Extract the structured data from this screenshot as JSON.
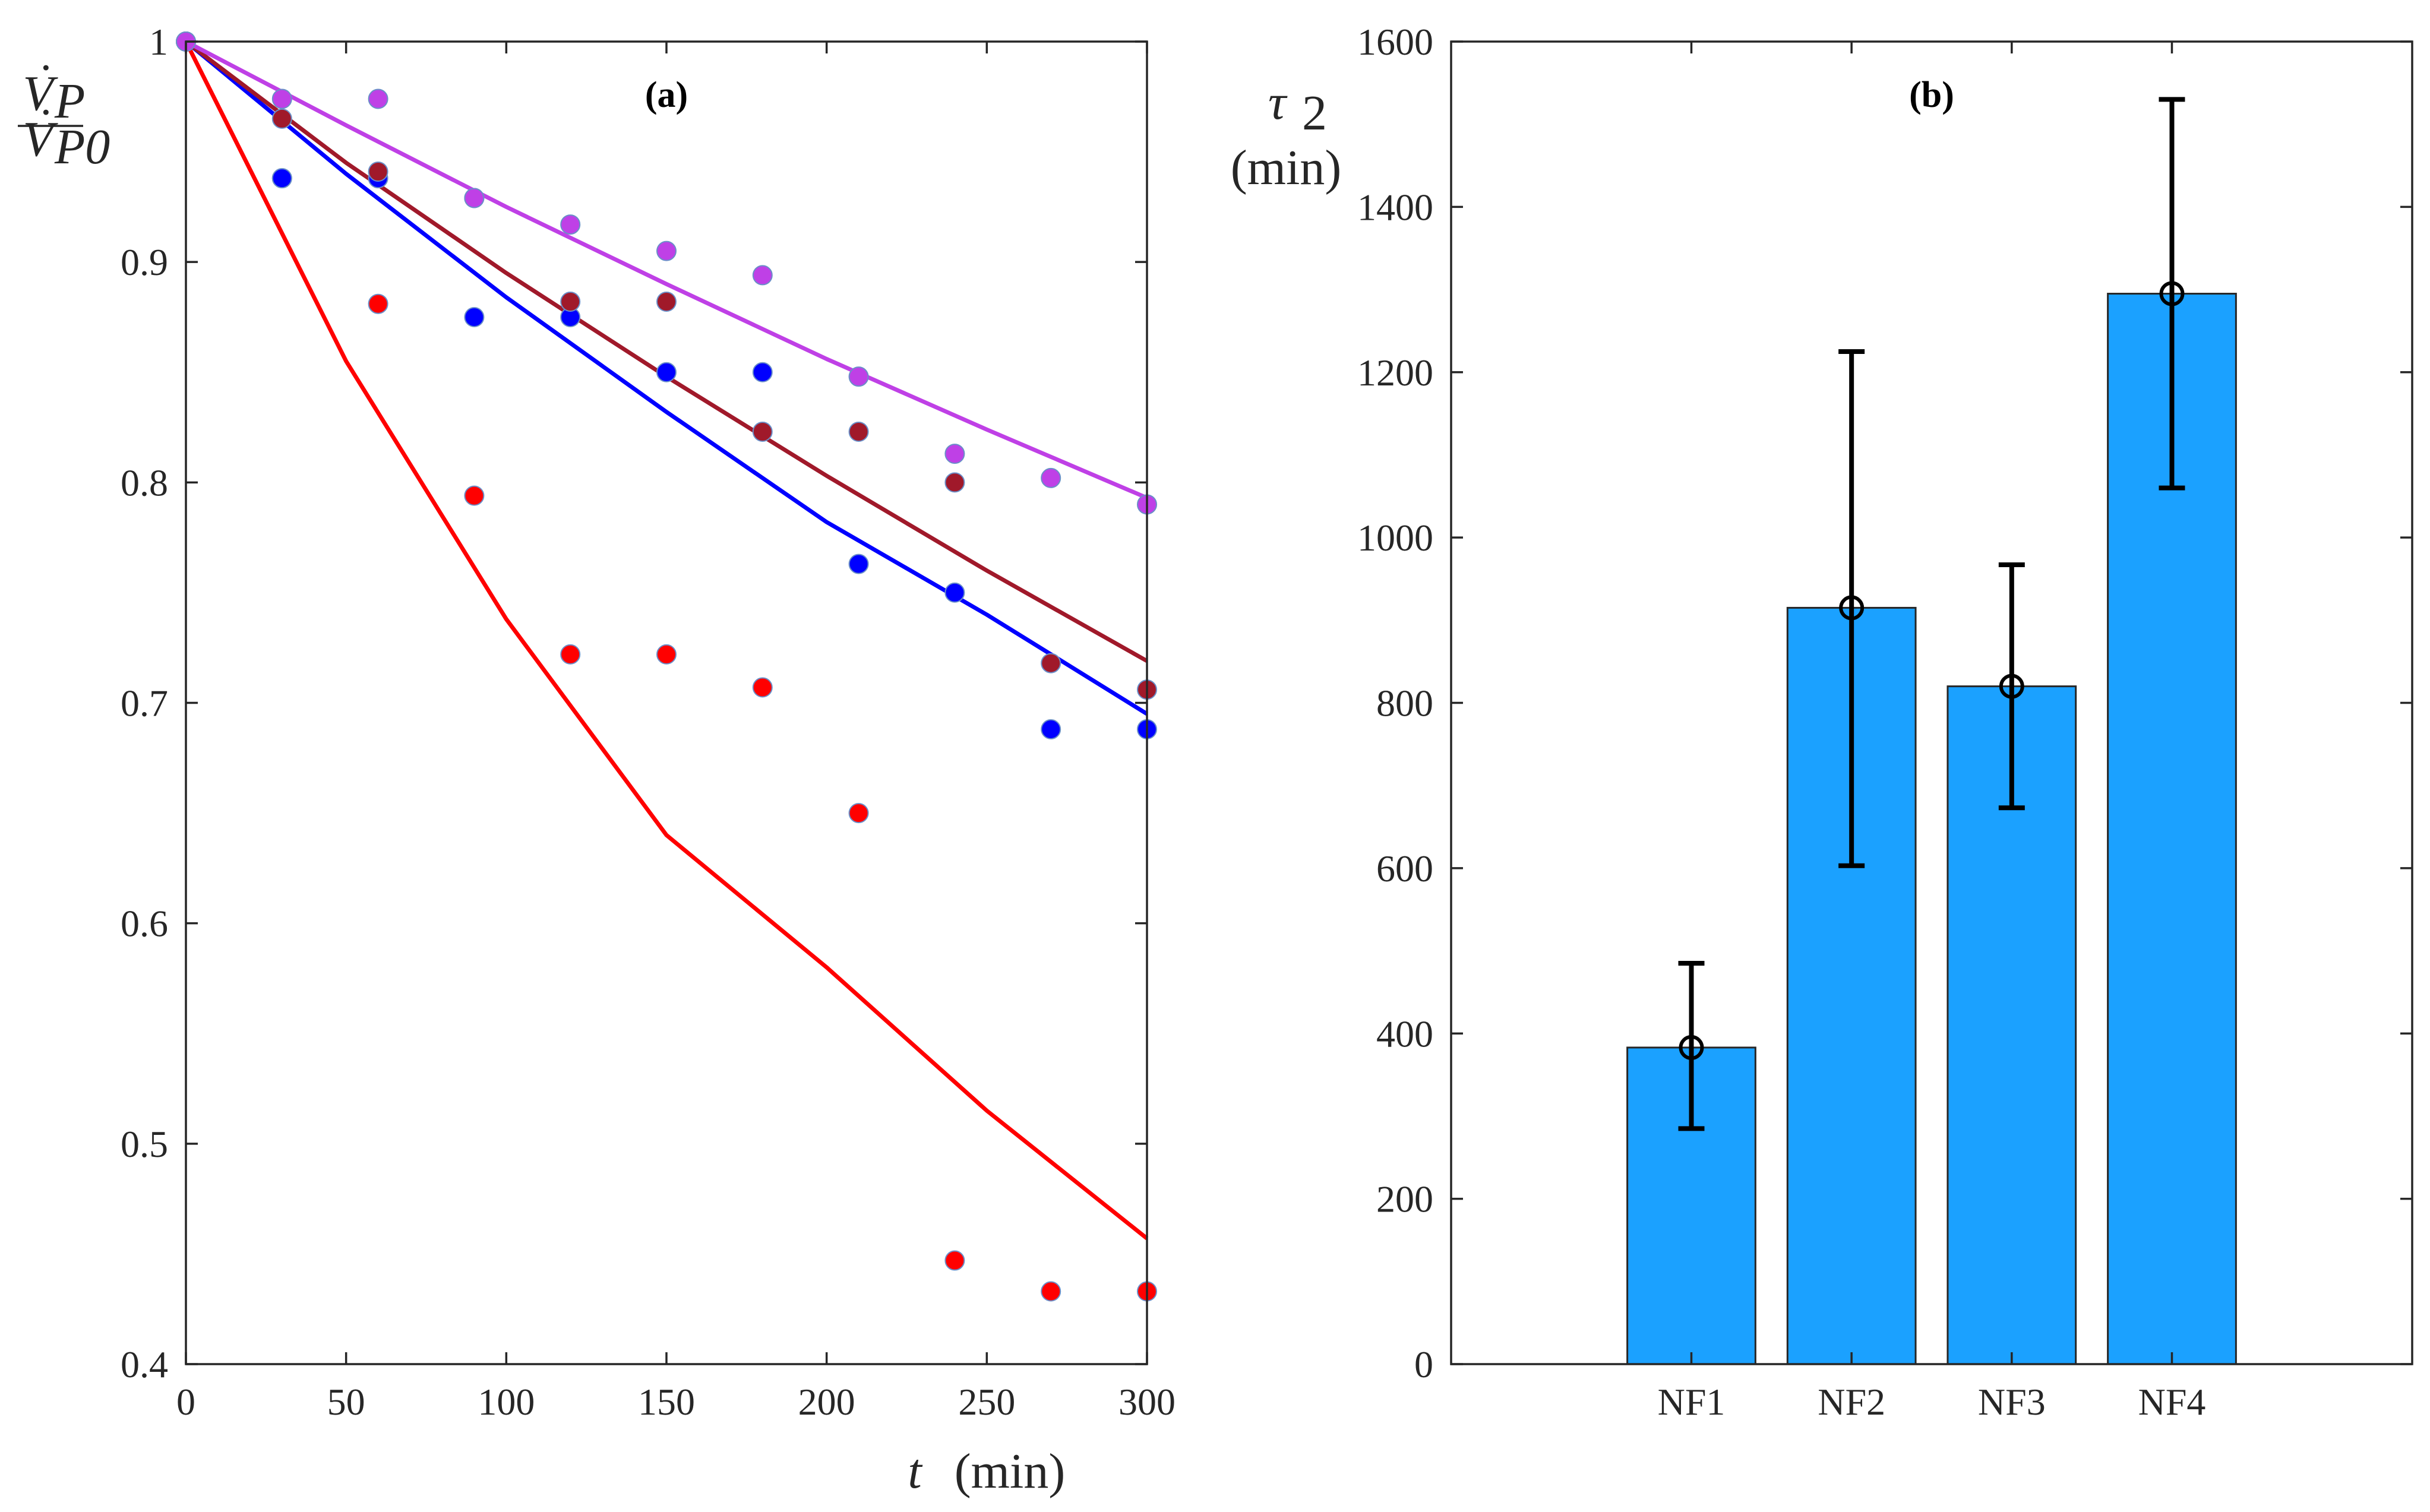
{
  "chart_data": [
    {
      "type": "scatter",
      "panel_label": "(a)",
      "xlabel_symbol": "t",
      "xlabel_unit": "(min)",
      "ylabel_numerator": "V",
      "ylabel_numerator_sub": "P",
      "ylabel_denominator": "V",
      "ylabel_denominator_sub": "P0",
      "xlim": [
        0,
        300
      ],
      "ylim": [
        0.4,
        1.0
      ],
      "x_ticks": [
        0,
        50,
        100,
        150,
        200,
        250,
        300
      ],
      "x_tick_labels": [
        "0",
        "50",
        "100",
        "150",
        "200",
        "250",
        "300"
      ],
      "y_ticks": [
        0.4,
        0.5,
        0.6,
        0.7,
        0.8,
        0.9,
        1.0
      ],
      "y_tick_labels": [
        "0.4",
        "0.5",
        "0.6",
        "0.7",
        "0.8",
        "0.9",
        "1"
      ],
      "grid": false,
      "series": [
        {
          "color": "#ff0000",
          "x": [
            0,
            30,
            60,
            90,
            120,
            150,
            180,
            210,
            240,
            270,
            300
          ],
          "y": [
            1.0,
            0.938,
            0.881,
            0.794,
            0.722,
            0.722,
            0.707,
            0.65,
            0.447,
            0.433,
            0.433
          ],
          "fit_x": [
            0,
            50,
            100,
            150,
            200,
            250,
            300
          ],
          "fit_y": [
            1.0,
            0.855,
            0.738,
            0.64,
            0.58,
            0.515,
            0.457
          ]
        },
        {
          "color": "#0000ff",
          "x": [
            0,
            30,
            60,
            90,
            120,
            150,
            180,
            210,
            240,
            270,
            300
          ],
          "y": [
            1.0,
            0.938,
            0.938,
            0.875,
            0.875,
            0.85,
            0.85,
            0.763,
            0.75,
            0.688,
            0.688
          ],
          "fit_x": [
            0,
            50,
            100,
            150,
            200,
            250,
            300
          ],
          "fit_y": [
            1.0,
            0.94,
            0.884,
            0.832,
            0.782,
            0.74,
            0.695
          ]
        },
        {
          "color": "#a0192a",
          "x": [
            0,
            30,
            60,
            90,
            120,
            150,
            180,
            210,
            240,
            270,
            300
          ],
          "y": [
            1.0,
            0.965,
            0.941,
            0.929,
            0.882,
            0.882,
            0.823,
            0.823,
            0.8,
            0.718,
            0.706
          ],
          "fit_x": [
            0,
            50,
            100,
            150,
            200,
            250,
            300
          ],
          "fit_y": [
            1.0,
            0.945,
            0.895,
            0.848,
            0.803,
            0.76,
            0.719
          ]
        },
        {
          "color": "#bf40e6",
          "x": [
            0,
            30,
            60,
            90,
            120,
            150,
            180,
            210,
            240,
            270,
            300
          ],
          "y": [
            1.0,
            0.974,
            0.974,
            0.929,
            0.917,
            0.905,
            0.894,
            0.848,
            0.813,
            0.802,
            0.79
          ],
          "fit_x": [
            0,
            50,
            100,
            150,
            200,
            250,
            300
          ],
          "fit_y": [
            1.0,
            0.962,
            0.925,
            0.89,
            0.856,
            0.824,
            0.793
          ]
        }
      ]
    },
    {
      "type": "bar",
      "panel_label": "(b)",
      "ylabel_symbol": "τ",
      "ylabel_sub": "2",
      "ylabel_unit": "(min)",
      "categories": [
        "NF1",
        "NF2",
        "NF3",
        "NF4"
      ],
      "values": [
        383,
        915,
        820,
        1295
      ],
      "error_low": [
        285,
        603,
        673,
        1060
      ],
      "error_high": [
        485,
        1225,
        967,
        1530
      ],
      "ylim": [
        0,
        1600
      ],
      "y_ticks": [
        0,
        200,
        400,
        600,
        800,
        1000,
        1200,
        1400,
        1600
      ],
      "y_tick_labels": [
        "0",
        "200",
        "400",
        "600",
        "800",
        "1000",
        "1200",
        "1400",
        "1600"
      ],
      "bar_color": "#1ba1ff",
      "grid": false
    }
  ]
}
